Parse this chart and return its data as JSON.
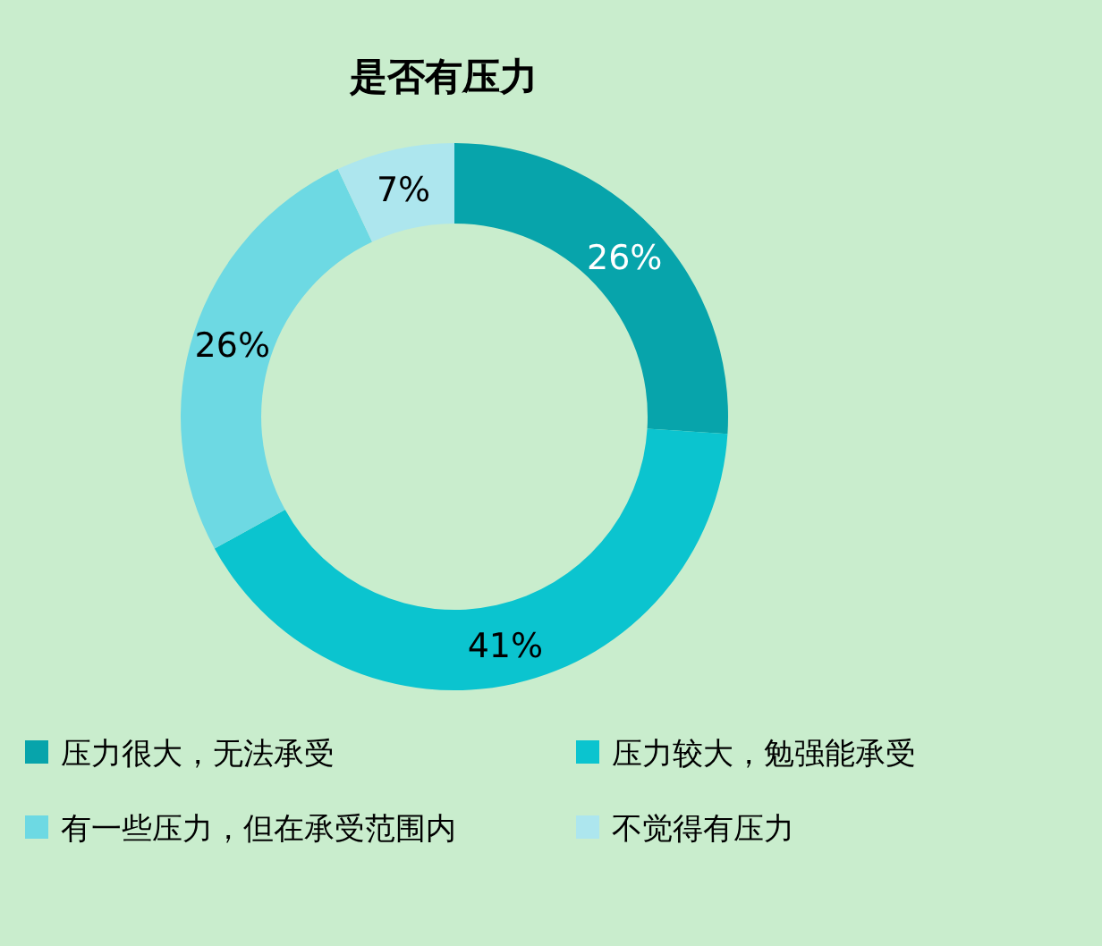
{
  "chart_data": {
    "type": "donut",
    "title": "是否有压力",
    "categories": [
      "压力很大，无法承受",
      "压力较大，勉强能承受",
      "有一些压力，但在承受范围内",
      "不觉得有压力"
    ],
    "values": [
      26,
      41,
      26,
      7
    ],
    "colors": [
      "#07a4ab",
      "#0bc4cf",
      "#6dd9e3",
      "#ade6ee"
    ],
    "value_labels": [
      "26%",
      "41%",
      "26%",
      "7%"
    ],
    "legend": "bottom"
  }
}
